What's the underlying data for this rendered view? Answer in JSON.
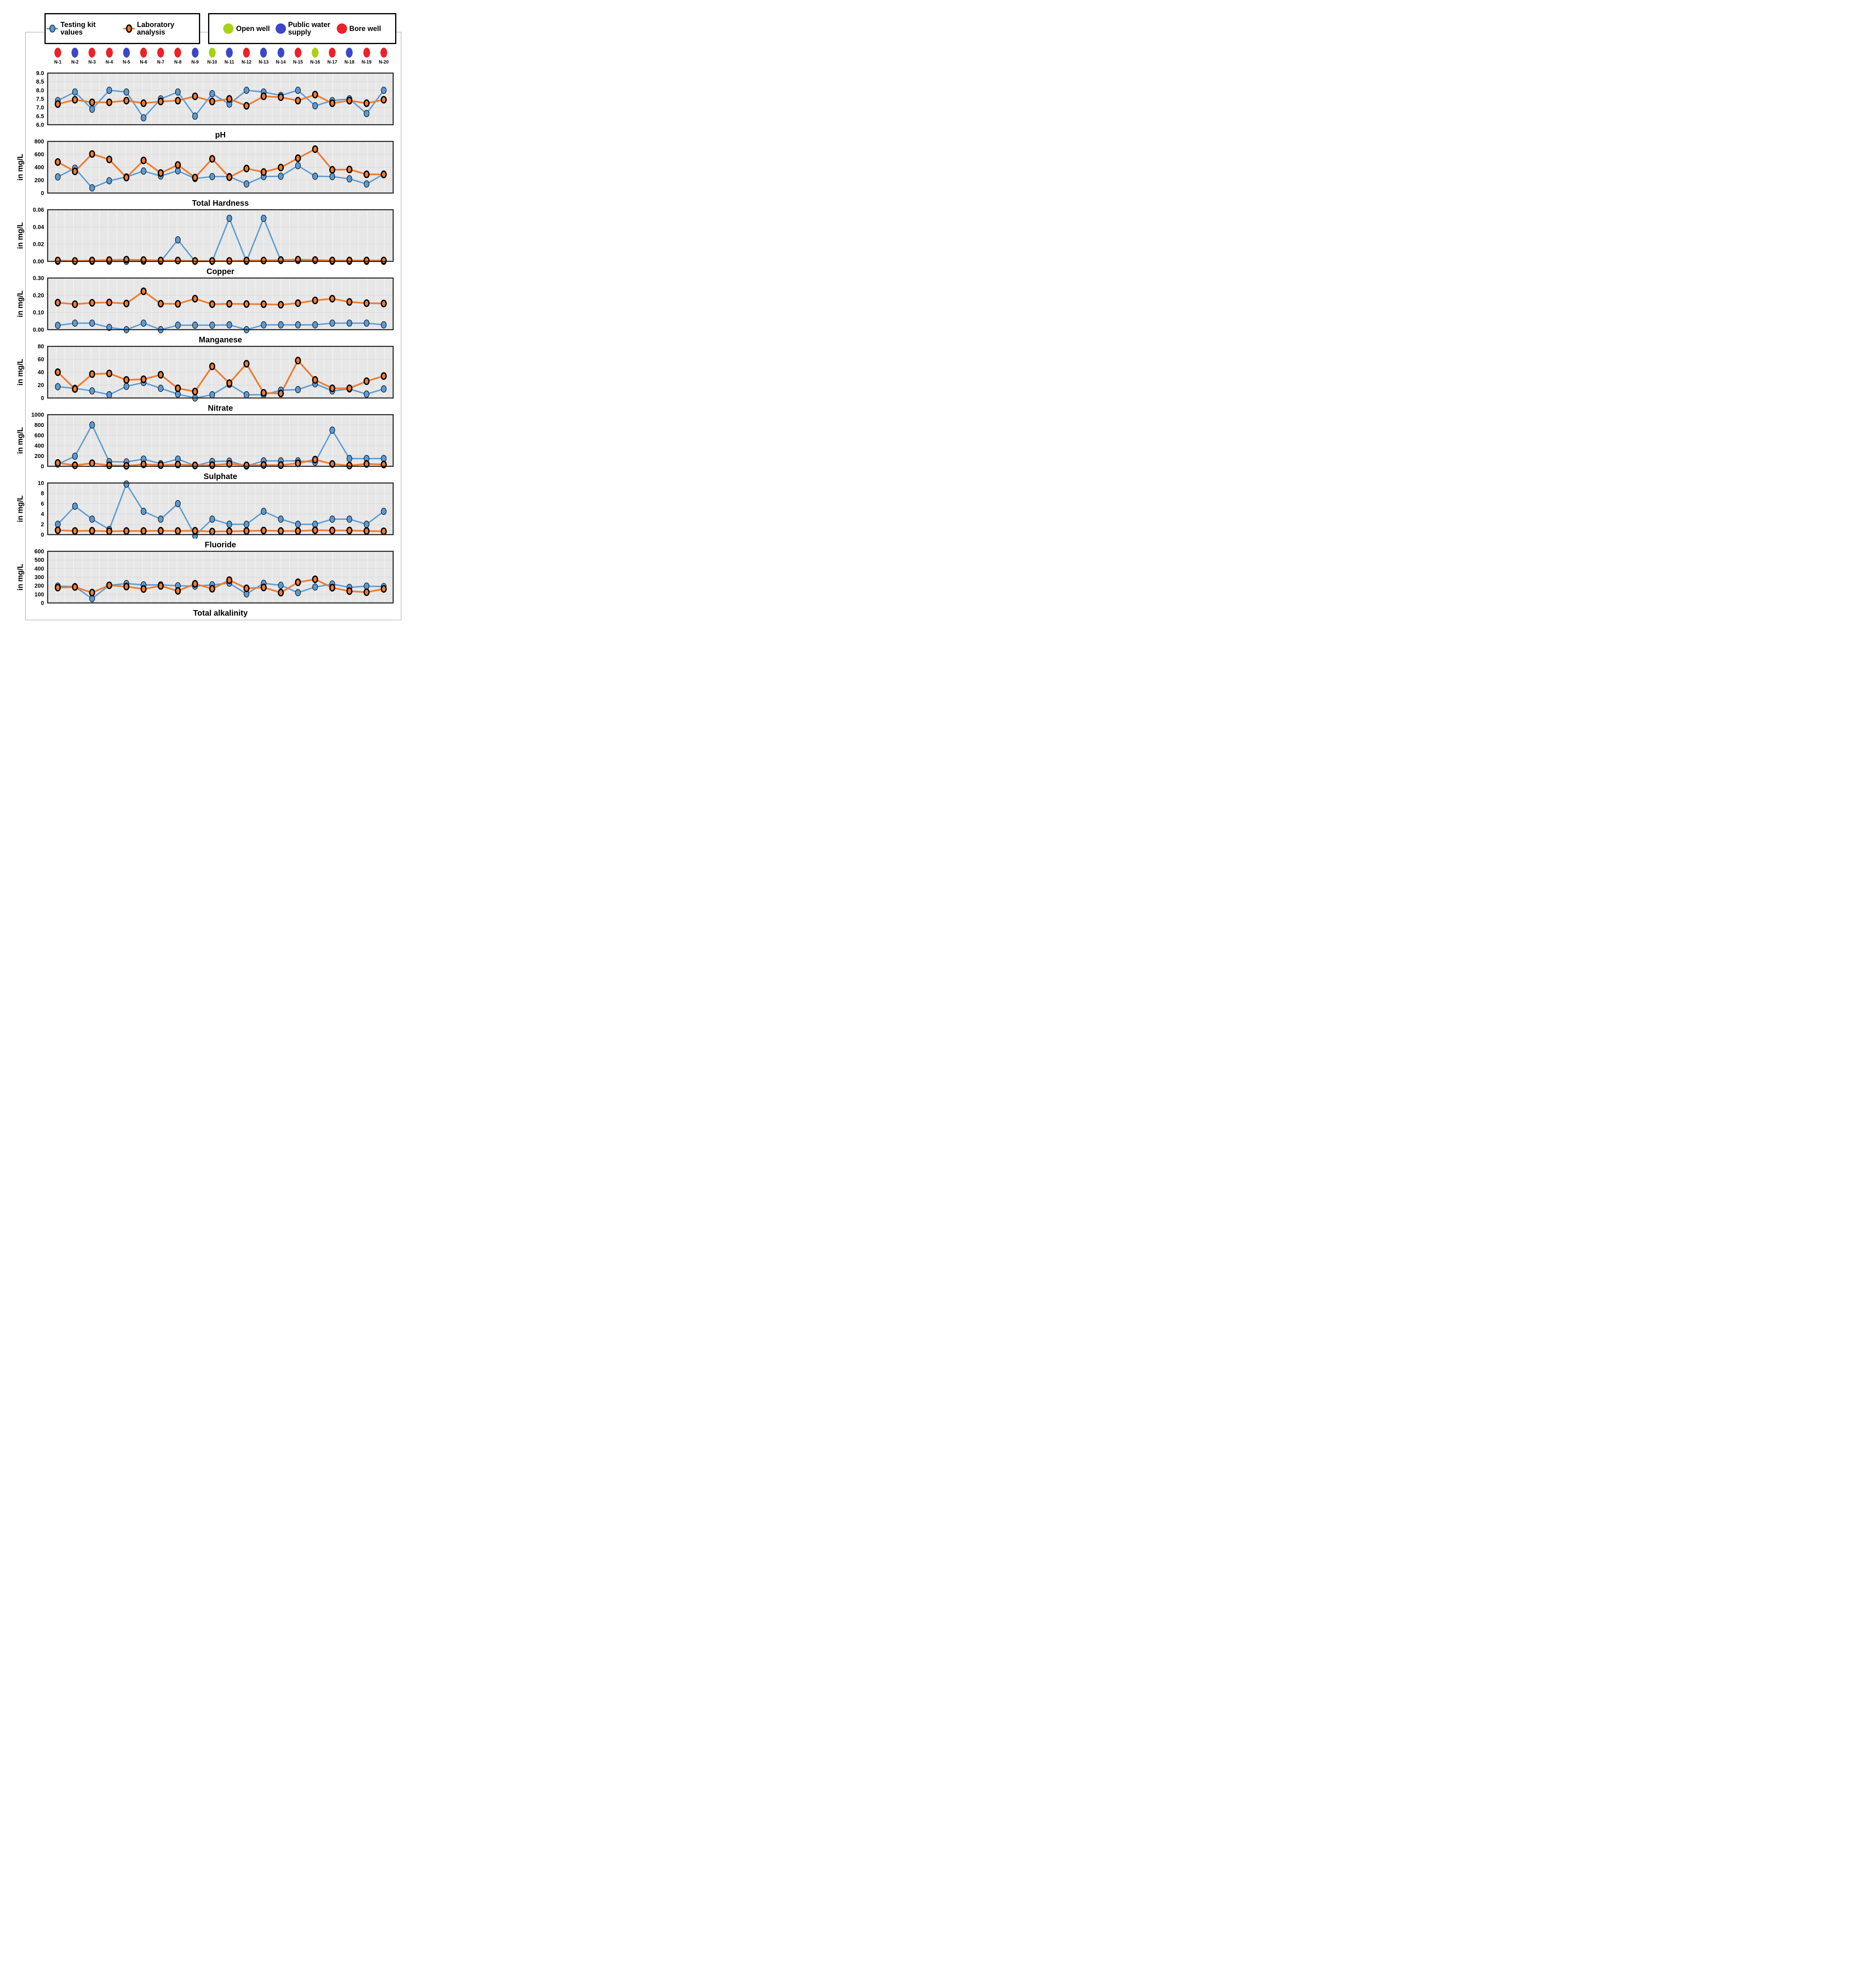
{
  "legend": {
    "series": [
      {
        "label": "Testing kit values",
        "color": "#5B9BD5"
      },
      {
        "label": "Laboratory analysis",
        "color": "#ED7D31"
      }
    ],
    "well_types": [
      {
        "id": "open_well",
        "label": "Open well",
        "color": "#A8D215"
      },
      {
        "id": "public_water_supply",
        "label": "Public water supply",
        "color": "#3C46C8"
      },
      {
        "id": "bore_well",
        "label": "Bore well",
        "color": "#EA2328"
      }
    ]
  },
  "sites": [
    {
      "label": "N-1",
      "well": "bore_well"
    },
    {
      "label": "N-2",
      "well": "public_water_supply"
    },
    {
      "label": "N-3",
      "well": "bore_well"
    },
    {
      "label": "N-4",
      "well": "bore_well"
    },
    {
      "label": "N-5",
      "well": "public_water_supply"
    },
    {
      "label": "N-6",
      "well": "bore_well"
    },
    {
      "label": "N-7",
      "well": "bore_well"
    },
    {
      "label": "N-8",
      "well": "bore_well"
    },
    {
      "label": "N-9",
      "well": "public_water_supply"
    },
    {
      "label": "N-10",
      "well": "open_well"
    },
    {
      "label": "N-11",
      "well": "public_water_supply"
    },
    {
      "label": "N-12",
      "well": "bore_well"
    },
    {
      "label": "N-13",
      "well": "public_water_supply"
    },
    {
      "label": "N-14",
      "well": "public_water_supply"
    },
    {
      "label": "N-15",
      "well": "bore_well"
    },
    {
      "label": "N-16",
      "well": "open_well"
    },
    {
      "label": "N-17",
      "well": "bore_well"
    },
    {
      "label": "N-18",
      "well": "public_water_supply"
    },
    {
      "label": "N-19",
      "well": "bore_well"
    },
    {
      "label": "N-20",
      "well": "bore_well"
    }
  ],
  "chart_data": [
    {
      "type": "line",
      "title": "pH",
      "ylabel": "",
      "ylim": [
        6.0,
        9.0
      ],
      "yticks": [
        "6.0",
        "6.5",
        "7.0",
        "7.5",
        "8.0",
        "8.5",
        "9.0"
      ],
      "categories": [
        "N-1",
        "N-2",
        "N-3",
        "N-4",
        "N-5",
        "N-6",
        "N-7",
        "N-8",
        "N-9",
        "N-10",
        "N-11",
        "N-12",
        "N-13",
        "N-14",
        "N-15",
        "N-16",
        "N-17",
        "N-18",
        "N-19",
        "N-20"
      ],
      "series": [
        {
          "name": "Testing kit values",
          "color": "#5B9BD5",
          "values": [
            7.4,
            7.9,
            6.9,
            8.0,
            7.9,
            6.4,
            7.5,
            7.9,
            6.5,
            7.8,
            7.2,
            8.0,
            7.9,
            7.7,
            8.0,
            7.1,
            7.4,
            7.5,
            6.65,
            8.0
          ]
        },
        {
          "name": "Laboratory analysis",
          "color": "#ED7D31",
          "values": [
            7.2,
            7.45,
            7.3,
            7.3,
            7.4,
            7.25,
            7.35,
            7.4,
            7.65,
            7.35,
            7.5,
            7.1,
            7.65,
            7.6,
            7.4,
            7.75,
            7.25,
            7.4,
            7.25,
            7.45
          ]
        }
      ]
    },
    {
      "type": "line",
      "title": "Total Hardness",
      "ylabel": "in mg/L",
      "ylim": [
        0,
        800
      ],
      "yticks": [
        "0",
        "200",
        "400",
        "600",
        "800"
      ],
      "categories": [
        "N-1",
        "N-2",
        "N-3",
        "N-4",
        "N-5",
        "N-6",
        "N-7",
        "N-8",
        "N-9",
        "N-10",
        "N-11",
        "N-12",
        "N-13",
        "N-14",
        "N-15",
        "N-16",
        "N-17",
        "N-18",
        "N-19",
        "N-20"
      ],
      "series": [
        {
          "name": "Testing kit values",
          "color": "#5B9BD5",
          "values": [
            250,
            385,
            80,
            190,
            250,
            340,
            265,
            345,
            225,
            255,
            255,
            140,
            255,
            260,
            425,
            260,
            255,
            220,
            140,
            295
          ]
        },
        {
          "name": "Laboratory analysis",
          "color": "#ED7D31",
          "values": [
            480,
            335,
            605,
            520,
            240,
            505,
            310,
            435,
            240,
            530,
            245,
            380,
            325,
            395,
            540,
            680,
            360,
            365,
            290,
            288
          ]
        }
      ]
    },
    {
      "type": "line",
      "title": "Copper",
      "ylabel": "in mg/L",
      "ylim": [
        0,
        0.06
      ],
      "yticks": [
        "0.00",
        "0.02",
        "0.04",
        "0.06"
      ],
      "categories": [
        "N-1",
        "N-2",
        "N-3",
        "N-4",
        "N-5",
        "N-6",
        "N-7",
        "N-8",
        "N-9",
        "N-10",
        "N-11",
        "N-12",
        "N-13",
        "N-14",
        "N-15",
        "N-16",
        "N-17",
        "N-18",
        "N-19",
        "N-20"
      ],
      "series": [
        {
          "name": "Testing kit values",
          "color": "#5B9BD5",
          "values": [
            0,
            0,
            0,
            0,
            0,
            0,
            0,
            0.025,
            0,
            0,
            0.05,
            0,
            0.05,
            0.001,
            0.001,
            0.001,
            0,
            0,
            0,
            0
          ]
        },
        {
          "name": "Laboratory analysis",
          "color": "#ED7D31",
          "values": [
            0.001,
            0.0005,
            0.001,
            0.0015,
            0.002,
            0.0015,
            0.001,
            0.001,
            0.0005,
            0.0005,
            0.0005,
            0.001,
            0.001,
            0.0015,
            0.002,
            0.0015,
            0.001,
            0.001,
            0.001,
            0.001
          ]
        }
      ]
    },
    {
      "type": "line",
      "title": "Manganese",
      "ylabel": "in mg/L",
      "ylim": [
        0,
        0.3
      ],
      "yticks": [
        "0.00",
        "0.10",
        "0.20",
        "0.30"
      ],
      "categories": [
        "N-1",
        "N-2",
        "N-3",
        "N-4",
        "N-5",
        "N-6",
        "N-7",
        "N-8",
        "N-9",
        "N-10",
        "N-11",
        "N-12",
        "N-13",
        "N-14",
        "N-15",
        "N-16",
        "N-17",
        "N-18",
        "N-19",
        "N-20"
      ],
      "series": [
        {
          "name": "Testing kit values",
          "color": "#5B9BD5",
          "values": [
            0.025,
            0.038,
            0.038,
            0.013,
            0.0,
            0.038,
            0.0,
            0.026,
            0.026,
            0.026,
            0.028,
            0.0,
            0.028,
            0.028,
            0.028,
            0.028,
            0.038,
            0.038,
            0.038,
            0.028
          ]
        },
        {
          "name": "Laboratory analysis",
          "color": "#ED7D31",
          "values": [
            0.157,
            0.148,
            0.156,
            0.158,
            0.152,
            0.223,
            0.151,
            0.15,
            0.18,
            0.148,
            0.15,
            0.149,
            0.148,
            0.145,
            0.154,
            0.17,
            0.18,
            0.161,
            0.154,
            0.152
          ]
        }
      ]
    },
    {
      "type": "line",
      "title": "Nitrate",
      "ylabel": "in mg/L",
      "ylim": [
        0,
        80
      ],
      "yticks": [
        "0",
        "20",
        "40",
        "60",
        "80"
      ],
      "categories": [
        "N-1",
        "N-2",
        "N-3",
        "N-4",
        "N-5",
        "N-6",
        "N-7",
        "N-8",
        "N-9",
        "N-10",
        "N-11",
        "N-12",
        "N-13",
        "N-14",
        "N-15",
        "N-16",
        "N-17",
        "N-18",
        "N-19",
        "N-20"
      ],
      "series": [
        {
          "name": "Testing kit values",
          "color": "#5B9BD5",
          "values": [
            17.5,
            15,
            11,
            5,
            18,
            24,
            15,
            6,
            0,
            5,
            21,
            5,
            5,
            12,
            13,
            22,
            11,
            14,
            6,
            14
          ]
        },
        {
          "name": "Laboratory analysis",
          "color": "#ED7D31",
          "values": [
            40,
            14,
            37,
            38,
            28,
            29,
            36,
            15,
            10,
            49,
            23,
            53,
            8,
            7,
            58,
            28,
            15,
            15,
            26,
            34
          ]
        }
      ]
    },
    {
      "type": "line",
      "title": "Sulphate",
      "ylabel": "in mg/L",
      "ylim": [
        0,
        1000
      ],
      "yticks": [
        "0",
        "200",
        "400",
        "600",
        "800",
        "1000"
      ],
      "categories": [
        "N-1",
        "N-2",
        "N-3",
        "N-4",
        "N-5",
        "N-6",
        "N-7",
        "N-8",
        "N-9",
        "N-10",
        "N-11",
        "N-12",
        "N-13",
        "N-14",
        "N-15",
        "N-16",
        "N-17",
        "N-18",
        "N-19",
        "N-20"
      ],
      "series": [
        {
          "name": "Testing kit values",
          "color": "#5B9BD5",
          "values": [
            42,
            195,
            800,
            90,
            85,
            140,
            50,
            140,
            10,
            95,
            100,
            5,
            105,
            105,
            105,
            80,
            700,
            150,
            150,
            150
          ]
        },
        {
          "name": "Laboratory analysis",
          "color": "#ED7D31",
          "values": [
            65,
            20,
            60,
            18,
            10,
            38,
            22,
            35,
            18,
            22,
            48,
            18,
            25,
            22,
            58,
            130,
            45,
            15,
            45,
            35
          ]
        }
      ]
    },
    {
      "type": "line",
      "title": "Fluoride",
      "ylabel": "in mg/L",
      "ylim": [
        0,
        10
      ],
      "yticks": [
        "0",
        "2",
        "4",
        "6",
        "8",
        "10"
      ],
      "categories": [
        "N-1",
        "N-2",
        "N-3",
        "N-4",
        "N-5",
        "N-6",
        "N-7",
        "N-8",
        "N-9",
        "N-10",
        "N-11",
        "N-12",
        "N-13",
        "N-14",
        "N-15",
        "N-16",
        "N-17",
        "N-18",
        "N-19",
        "N-20"
      ],
      "series": [
        {
          "name": "Testing kit values",
          "color": "#5B9BD5",
          "values": [
            2,
            5.5,
            3,
            1,
            9.8,
            4.5,
            3,
            6,
            -0.2,
            3,
            2,
            2,
            4.5,
            3,
            2,
            2,
            3,
            3,
            2,
            4.5
          ]
        },
        {
          "name": "Laboratory analysis",
          "color": "#ED7D31",
          "values": [
            0.85,
            0.7,
            0.75,
            0.65,
            0.7,
            0.7,
            0.75,
            0.7,
            0.75,
            0.6,
            0.65,
            0.7,
            0.8,
            0.7,
            0.7,
            0.85,
            0.8,
            0.8,
            0.7,
            0.65
          ]
        }
      ]
    },
    {
      "type": "line",
      "title": "Total alkalinity",
      "ylabel": "in mg/L",
      "ylim": [
        0,
        600
      ],
      "yticks": [
        "0",
        "100",
        "200",
        "300",
        "400",
        "500",
        "600"
      ],
      "categories": [
        "N-1",
        "N-2",
        "N-3",
        "N-4",
        "N-5",
        "N-6",
        "N-7",
        "N-8",
        "N-9",
        "N-10",
        "N-11",
        "N-12",
        "N-13",
        "N-14",
        "N-15",
        "N-16",
        "N-17",
        "N-18",
        "N-19",
        "N-20"
      ],
      "series": [
        {
          "name": "Testing kit values",
          "color": "#5B9BD5",
          "values": [
            195,
            190,
            50,
            205,
            225,
            210,
            210,
            200,
            195,
            210,
            230,
            105,
            228,
            205,
            120,
            185,
            220,
            180,
            195,
            190
          ]
        },
        {
          "name": "Laboratory analysis",
          "color": "#ED7D31",
          "values": [
            178,
            185,
            120,
            205,
            190,
            162,
            198,
            140,
            222,
            165,
            265,
            170,
            180,
            120,
            240,
            275,
            177,
            137,
            125,
            163
          ]
        }
      ]
    }
  ]
}
